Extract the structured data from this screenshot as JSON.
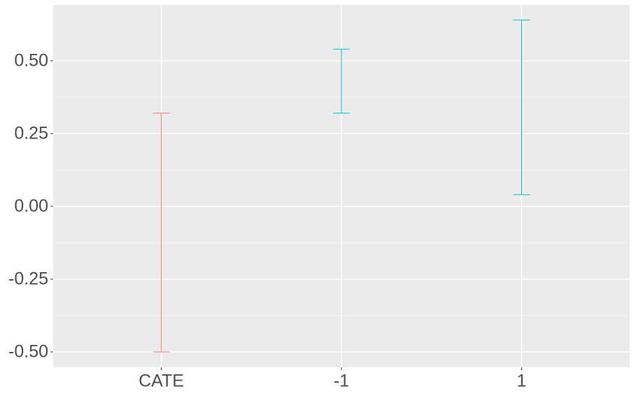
{
  "chart_data": {
    "type": "errorbar",
    "categories": [
      "CATE",
      "-1",
      "1"
    ],
    "upper": [
      0.32,
      0.54,
      0.64
    ],
    "lower": [
      -0.5,
      0.32,
      0.04
    ],
    "colors": [
      "#F8766D",
      "#00BFC4",
      "#00BFC4"
    ],
    "ylim": [
      -0.553,
      0.692
    ],
    "yticks": [
      {
        "value": -0.5,
        "label": "-0.50"
      },
      {
        "value": -0.25,
        "label": "-0.25"
      },
      {
        "value": 0,
        "label": "0.00"
      },
      {
        "value": 0.25,
        "label": "0.25"
      },
      {
        "value": 0.5,
        "label": "0.50"
      }
    ],
    "grid": true
  }
}
